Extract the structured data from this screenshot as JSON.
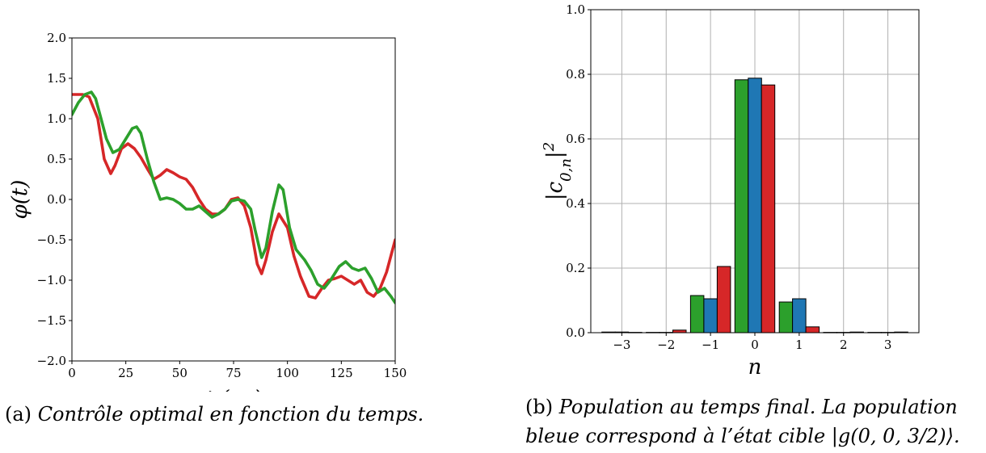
{
  "chart_data": [
    {
      "type": "line",
      "xlabel": "t (μs)",
      "ylabel": "φ(t)",
      "xlim": [
        0,
        150
      ],
      "ylim": [
        -2.0,
        2.0
      ],
      "xticks": [
        0,
        25,
        50,
        75,
        100,
        125,
        150
      ],
      "yticks": [
        -2.0,
        -1.5,
        -1.0,
        -0.5,
        0.0,
        0.5,
        1.0,
        1.5,
        2.0
      ],
      "grid": false,
      "series": [
        {
          "color": "#d62728",
          "x": [
            0,
            5,
            8,
            12,
            15,
            18,
            20,
            23,
            26,
            29,
            32,
            35,
            38,
            41,
            44,
            47,
            50,
            53,
            56,
            59,
            62,
            65,
            68,
            71,
            74,
            77,
            80,
            83,
            86,
            88,
            90,
            93,
            96,
            100,
            103,
            106,
            110,
            113,
            116,
            119,
            122,
            125,
            128,
            131,
            134,
            137,
            140,
            143,
            146,
            150
          ],
          "y": [
            1.3,
            1.3,
            1.27,
            1.0,
            0.5,
            0.32,
            0.42,
            0.63,
            0.69,
            0.63,
            0.52,
            0.38,
            0.25,
            0.3,
            0.37,
            0.33,
            0.28,
            0.25,
            0.15,
            0.0,
            -0.12,
            -0.18,
            -0.18,
            -0.12,
            0.0,
            0.02,
            -0.08,
            -0.35,
            -0.8,
            -0.92,
            -0.75,
            -0.4,
            -0.18,
            -0.35,
            -0.7,
            -0.95,
            -1.2,
            -1.22,
            -1.1,
            -1.0,
            -0.98,
            -0.95,
            -1.0,
            -1.05,
            -1.0,
            -1.15,
            -1.2,
            -1.1,
            -0.9,
            -0.5
          ]
        },
        {
          "color": "#2ca02c",
          "x": [
            0,
            3,
            6,
            9,
            11,
            13,
            16,
            19,
            22,
            25,
            28,
            30,
            32,
            35,
            38,
            41,
            44,
            47,
            50,
            53,
            56,
            59,
            62,
            65,
            68,
            71,
            74,
            77,
            80,
            83,
            85,
            88,
            90,
            93,
            96,
            98,
            101,
            104,
            108,
            111,
            114,
            117,
            120,
            124,
            127,
            130,
            133,
            136,
            139,
            142,
            145,
            148,
            150
          ],
          "y": [
            1.05,
            1.2,
            1.3,
            1.33,
            1.25,
            1.05,
            0.75,
            0.58,
            0.62,
            0.75,
            0.88,
            0.9,
            0.82,
            0.5,
            0.22,
            0.0,
            0.02,
            0.0,
            -0.05,
            -0.12,
            -0.12,
            -0.08,
            -0.15,
            -0.22,
            -0.18,
            -0.12,
            -0.02,
            0.0,
            -0.02,
            -0.12,
            -0.38,
            -0.72,
            -0.6,
            -0.15,
            0.18,
            0.12,
            -0.35,
            -0.62,
            -0.75,
            -0.88,
            -1.05,
            -1.1,
            -1.0,
            -0.83,
            -0.77,
            -0.85,
            -0.88,
            -0.85,
            -0.98,
            -1.15,
            -1.1,
            -1.2,
            -1.28
          ]
        }
      ]
    },
    {
      "type": "bar",
      "xlabel": "n",
      "ylabel": "|c0,n|2",
      "xlim": [
        -3.7,
        3.7
      ],
      "ylim": [
        0.0,
        1.0
      ],
      "xticks": [
        -3,
        -2,
        -1,
        0,
        1,
        2,
        3
      ],
      "yticks": [
        0.0,
        0.2,
        0.4,
        0.6,
        0.8,
        1.0
      ],
      "grid": true,
      "categories": [
        -3,
        -2,
        -1,
        0,
        1,
        2,
        3
      ],
      "series": [
        {
          "color": "#2ca02c",
          "values": [
            0.002,
            0.001,
            0.115,
            0.783,
            0.095,
            0.001,
            0.001
          ]
        },
        {
          "color": "#1f77b4",
          "values": [
            0.002,
            0.001,
            0.105,
            0.788,
            0.105,
            0.001,
            0.001
          ]
        },
        {
          "color": "#d62728",
          "values": [
            0.001,
            0.008,
            0.205,
            0.767,
            0.018,
            0.002,
            0.002
          ]
        }
      ]
    }
  ],
  "captions": {
    "a": {
      "tag": "(a)",
      "text": "Contrôle optimal en fonction du temps."
    },
    "b": {
      "tag": "(b)",
      "line1": "Population au temps final. La population",
      "line2": "bleue correspond à l’état cible |g(0, 0, 3/2)⟩."
    }
  }
}
